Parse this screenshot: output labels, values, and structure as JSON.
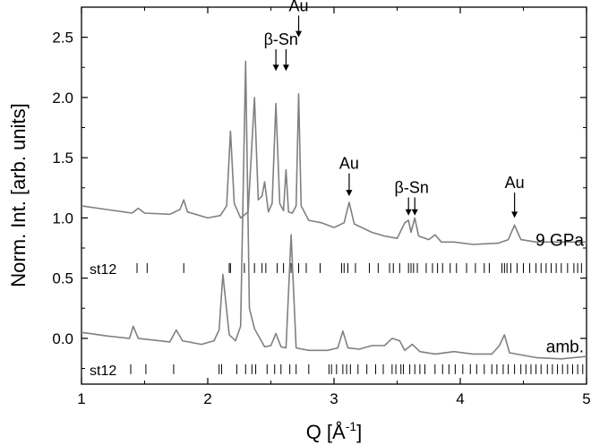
{
  "chart_data": {
    "type": "line",
    "xlabel": "Q [Å",
    "xlabel_sup": "-1",
    "xlabel_end": "]",
    "ylabel": "Norm. Int. [arb. units]",
    "xlim": [
      1,
      5
    ],
    "ylim": [
      -0.38,
      2.75
    ],
    "x_ticks": [
      1,
      2,
      3,
      4,
      5
    ],
    "y_ticks": [
      0.0,
      0.5,
      1.0,
      1.5,
      2.0,
      2.5
    ],
    "x_ticklabels": [
      "1",
      "2",
      "3",
      "4",
      "5"
    ],
    "y_ticklabels": [
      "0.0",
      "0.5",
      "1.0",
      "1.5",
      "2.0",
      "2.5"
    ],
    "series": [
      {
        "name": "9 GPa",
        "color": "#808080",
        "x": [
          1.0,
          1.2,
          1.4,
          1.45,
          1.5,
          1.7,
          1.78,
          1.81,
          1.84,
          2.0,
          2.1,
          2.15,
          2.18,
          2.21,
          2.26,
          2.32,
          2.37,
          2.4,
          2.43,
          2.45,
          2.48,
          2.51,
          2.54,
          2.57,
          2.6,
          2.62,
          2.64,
          2.67,
          2.7,
          2.72,
          2.74,
          2.8,
          2.9,
          3.0,
          3.08,
          3.12,
          3.16,
          3.3,
          3.4,
          3.5,
          3.56,
          3.59,
          3.61,
          3.64,
          3.67,
          3.75,
          3.8,
          3.85,
          3.95,
          4.1,
          4.3,
          4.38,
          4.43,
          4.48,
          4.6,
          4.8,
          5.0
        ],
        "y": [
          1.1,
          1.07,
          1.04,
          1.08,
          1.04,
          1.03,
          1.07,
          1.15,
          1.05,
          1.0,
          1.02,
          1.1,
          1.72,
          1.12,
          1.0,
          1.05,
          2.0,
          1.15,
          1.18,
          1.3,
          1.05,
          1.12,
          1.95,
          1.12,
          1.06,
          1.4,
          1.05,
          1.04,
          1.1,
          2.03,
          1.1,
          0.98,
          0.96,
          0.92,
          0.96,
          1.13,
          0.95,
          0.88,
          0.85,
          0.83,
          0.96,
          0.98,
          0.88,
          1.0,
          0.85,
          0.82,
          0.86,
          0.8,
          0.8,
          0.78,
          0.79,
          0.82,
          0.94,
          0.82,
          0.8,
          0.8,
          0.8
        ]
      },
      {
        "name": "amb.",
        "color": "#808080",
        "x": [
          1.0,
          1.2,
          1.38,
          1.41,
          1.45,
          1.7,
          1.75,
          1.8,
          1.95,
          2.05,
          2.09,
          2.12,
          2.17,
          2.22,
          2.26,
          2.3,
          2.33,
          2.37,
          2.45,
          2.5,
          2.54,
          2.58,
          2.62,
          2.66,
          2.7,
          2.8,
          2.95,
          3.03,
          3.07,
          3.11,
          3.2,
          3.3,
          3.4,
          3.46,
          3.52,
          3.56,
          3.62,
          3.68,
          3.8,
          3.95,
          4.1,
          4.25,
          4.31,
          4.35,
          4.39,
          4.6,
          4.8,
          5.0
        ],
        "y": [
          0.05,
          0.02,
          0.0,
          0.1,
          0.0,
          -0.03,
          0.07,
          -0.02,
          -0.05,
          -0.02,
          0.07,
          0.53,
          0.03,
          -0.02,
          0.1,
          2.3,
          0.25,
          0.08,
          -0.07,
          -0.06,
          0.04,
          -0.07,
          -0.08,
          0.86,
          -0.08,
          -0.1,
          -0.1,
          -0.08,
          0.06,
          -0.08,
          -0.09,
          -0.06,
          -0.06,
          0.0,
          -0.02,
          -0.1,
          -0.05,
          -0.11,
          -0.13,
          -0.11,
          -0.13,
          -0.13,
          -0.06,
          0.03,
          -0.12,
          -0.16,
          -0.17,
          -0.15
        ]
      }
    ],
    "tick_rows": [
      {
        "label": "st12",
        "y": 0.58,
        "positions": [
          1.44,
          1.52,
          1.81,
          2.17,
          2.18,
          2.29,
          2.37,
          2.43,
          2.46,
          2.55,
          2.6,
          2.66,
          2.72,
          2.78,
          2.89,
          3.06,
          3.08,
          3.11,
          3.17,
          3.28,
          3.35,
          3.44,
          3.47,
          3.52,
          3.59,
          3.61,
          3.63,
          3.66,
          3.73,
          3.78,
          3.82,
          3.86,
          3.92,
          3.97,
          4.05,
          4.12,
          4.19,
          4.23,
          4.33,
          4.35,
          4.37,
          4.4,
          4.45,
          4.5,
          4.55,
          4.6,
          4.64,
          4.68,
          4.72,
          4.76,
          4.8,
          4.85,
          4.9,
          4.93,
          4.96
        ]
      },
      {
        "label": "st12",
        "y": -0.26,
        "positions": [
          1.39,
          1.51,
          1.73,
          2.09,
          2.11,
          2.23,
          2.3,
          2.35,
          2.38,
          2.47,
          2.53,
          2.58,
          2.65,
          2.7,
          2.8,
          2.96,
          2.98,
          3.02,
          3.07,
          3.1,
          3.13,
          3.19,
          3.26,
          3.33,
          3.39,
          3.46,
          3.49,
          3.53,
          3.55,
          3.6,
          3.64,
          3.68,
          3.72,
          3.8,
          3.86,
          3.91,
          3.96,
          4.02,
          4.08,
          4.13,
          4.19,
          4.25,
          4.29,
          4.34,
          4.38,
          4.43,
          4.48,
          4.52,
          4.56,
          4.6,
          4.64,
          4.69,
          4.73,
          4.77,
          4.81,
          4.85,
          4.89,
          4.93,
          4.97
        ]
      }
    ],
    "annotations": [
      {
        "text": "β-Sn",
        "arrows": [
          2.54,
          2.62
        ],
        "arrow_top_y": 2.4,
        "arrow_bot_y": 2.22
      },
      {
        "text": "Au",
        "arrows": [
          2.72
        ],
        "arrow_top_y": 2.68,
        "arrow_bot_y": 2.5
      },
      {
        "text": "Au",
        "arrows": [
          3.12
        ],
        "arrow_top_y": 1.37,
        "arrow_bot_y": 1.18
      },
      {
        "text": "β-Sn",
        "arrows": [
          3.59,
          3.64
        ],
        "arrow_top_y": 1.17,
        "arrow_bot_y": 1.02
      },
      {
        "text": "Au",
        "arrows": [
          4.43
        ],
        "arrow_top_y": 1.21,
        "arrow_bot_y": 1.0
      }
    ]
  }
}
